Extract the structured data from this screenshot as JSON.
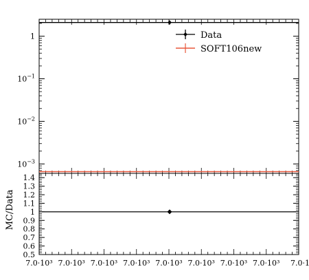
{
  "chart_data": [
    {
      "panel": "main",
      "type": "line",
      "yscale": "log",
      "ylim": [
        0.0006,
        2.5
      ],
      "yticks": [
        {
          "value": 1,
          "label": "1"
        },
        {
          "value": 0.1,
          "label": "10",
          "exp": "−1"
        },
        {
          "value": 0.01,
          "label": "10",
          "exp": "−2"
        },
        {
          "value": 0.001,
          "label": "10",
          "exp": "−3"
        }
      ],
      "legend": {
        "position": "top-right"
      },
      "series": [
        {
          "name": "Data",
          "color": "#000000",
          "style": "points-with-line",
          "y": 2.1,
          "point_x": 7000
        },
        {
          "name": "SOFT106new",
          "color": "#e8563a",
          "style": "line",
          "y": 0.00066
        }
      ]
    },
    {
      "panel": "ratio",
      "type": "line",
      "ylabel": "MC/Data",
      "ylim": [
        0.5,
        1.45
      ],
      "yticks": [
        "0.5",
        "0.6",
        "0.7",
        "0.8",
        "0.9",
        "1",
        "1.1",
        "1.2",
        "1.3",
        "1.4"
      ],
      "series": [
        {
          "name": "Data",
          "color": "#000000",
          "y": 1.0,
          "point_x": 7000
        }
      ],
      "xticks": [
        "7.0·10³",
        "7.0·10³",
        "7.0·10³",
        "7.0·10³",
        "7.0·10³",
        "7.0·10³",
        "7.0·10³",
        "7.0·10³",
        "7.0·10"
      ]
    }
  ]
}
